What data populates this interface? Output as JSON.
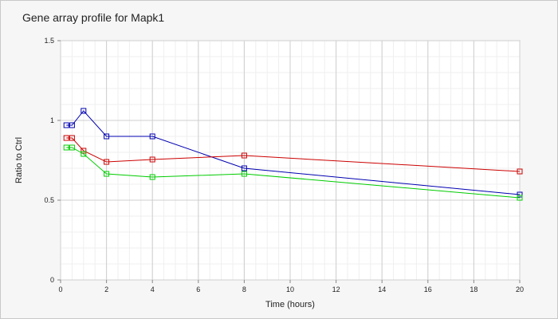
{
  "chart_data": {
    "type": "line",
    "title": "Gene array profile for Mapk1",
    "xlabel": "Time (hours)",
    "ylabel": "Ratio to Ctrl",
    "xlim": [
      0,
      20
    ],
    "ylim": [
      0,
      1.5
    ],
    "x_ticks": [
      "0",
      "2",
      "4",
      "6",
      "8",
      "10",
      "12",
      "14",
      "16",
      "18",
      "20"
    ],
    "y_ticks": [
      "0",
      "0.5",
      "1",
      "1.5"
    ],
    "grid": true,
    "marker": "square",
    "series": [
      {
        "color": "#0000b0",
        "points": [
          [
            0.25,
            0.97
          ],
          [
            0.5,
            0.97
          ],
          [
            1,
            1.06
          ],
          [
            2,
            0.9
          ],
          [
            4,
            0.9
          ],
          [
            8,
            0.7
          ],
          [
            20,
            0.535
          ]
        ]
      },
      {
        "color": "#cc0000",
        "points": [
          [
            0.25,
            0.89
          ],
          [
            0.5,
            0.89
          ],
          [
            1,
            0.81
          ],
          [
            2,
            0.74
          ],
          [
            4,
            0.755
          ],
          [
            8,
            0.78
          ],
          [
            20,
            0.68
          ]
        ]
      },
      {
        "color": "#00cc00",
        "points": [
          [
            0.25,
            0.83
          ],
          [
            0.5,
            0.83
          ],
          [
            1,
            0.79
          ],
          [
            2,
            0.665
          ],
          [
            4,
            0.645
          ],
          [
            8,
            0.665
          ],
          [
            20,
            0.515
          ]
        ]
      }
    ]
  }
}
